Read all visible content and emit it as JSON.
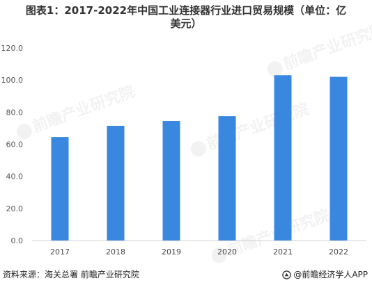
{
  "chart_data": {
    "type": "bar",
    "title": "图表1：2017-2022年中国工业连接器行业进口贸易规模（单位：亿美元）",
    "title_lines": [
      "图表1：2017-2022年中国工业连接器行业进口贸易规模（单位：亿",
      "美元）"
    ],
    "categories": [
      "2017",
      "2018",
      "2019",
      "2020",
      "2021",
      "2022"
    ],
    "values": [
      64.5,
      71.5,
      74.5,
      77.5,
      103.0,
      102.0
    ],
    "ylim": [
      0,
      120
    ],
    "yticks": [
      "0.0",
      "20.0",
      "40.0",
      "60.0",
      "80.0",
      "100.0",
      "120.0"
    ],
    "xlabel": "",
    "ylabel": "",
    "grid": false,
    "bar_color": "#3a87e0"
  },
  "footer": {
    "source": "资料来源：海关总署 前瞻产业研究院",
    "brand": "@前瞻经济学人APP"
  },
  "watermark": {
    "text": "前瞻产业研究院",
    "icon": "qianzhan-logo-icon"
  }
}
